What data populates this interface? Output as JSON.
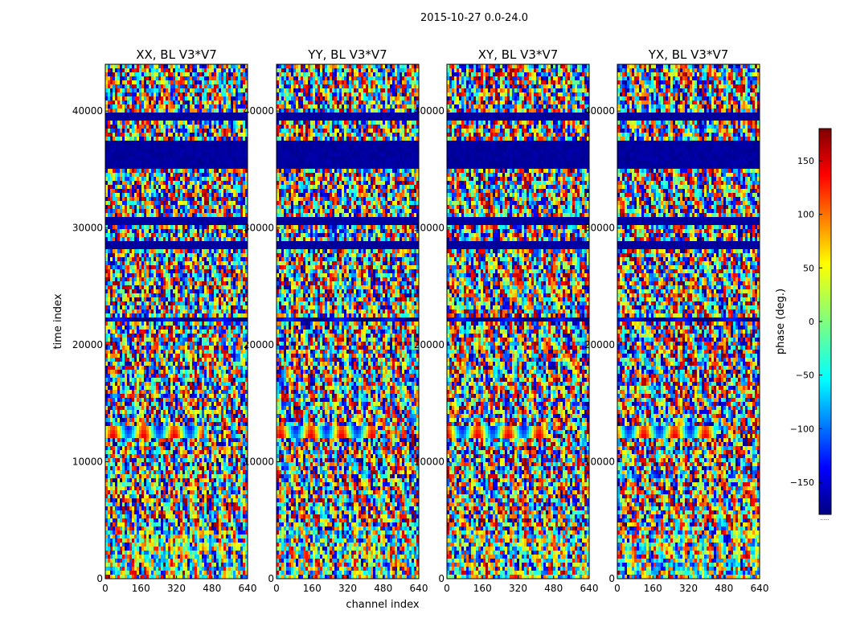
{
  "figure": {
    "suptitle": "2015-10-27 0.0-24.0",
    "xlabel": "channel index",
    "ylabel": "time index",
    "colorbar_label": "phase (deg.)",
    "colorbar_footer": "......"
  },
  "chart_data": {
    "type": "heatmap",
    "title": "2015-10-27 0.0-24.0",
    "xlabel": "channel index",
    "ylabel": "time index",
    "xlim": [
      0,
      640
    ],
    "ylim": [
      0,
      44000
    ],
    "x_ticks": [
      0,
      160,
      320,
      480,
      640
    ],
    "y_ticks": [
      0,
      10000,
      20000,
      30000,
      40000
    ],
    "x_tick_labels": [
      "0",
      "160",
      "320",
      "480",
      "640"
    ],
    "y_tick_labels": [
      "0",
      "10000",
      "20000",
      "30000",
      "40000"
    ],
    "colorbar": {
      "label": "phase (deg.)",
      "min": -180,
      "max": 180,
      "ticks": [
        -150,
        -100,
        -50,
        0,
        50,
        100,
        150
      ],
      "tick_labels": [
        "−150",
        "−100",
        "−50",
        "0",
        "50",
        "100",
        "150"
      ],
      "colormap": "jet"
    },
    "series": [
      {
        "name": "XX, BL V3*V7",
        "type": "heatmap",
        "x_range": [
          0,
          640
        ],
        "y_range": [
          0,
          44000
        ],
        "notes": "phase-vs-time/channel pattern with repeated horizontal banding; strong low-phase band near 35000–37500"
      },
      {
        "name": "YY, BL V3*V7",
        "type": "heatmap",
        "x_range": [
          0,
          640
        ],
        "y_range": [
          0,
          44000
        ],
        "notes": "phase-vs-time/channel pattern with repeated horizontal banding; strong low-phase band near 35000–37500"
      },
      {
        "name": "XY, BL V3*V7",
        "type": "heatmap",
        "x_range": [
          0,
          640
        ],
        "y_range": [
          0,
          44000
        ],
        "notes": "phase-vs-time/channel pattern with repeated horizontal banding; strong low-phase band near 35000–37500"
      },
      {
        "name": "YX, BL V3*V7",
        "type": "heatmap",
        "x_range": [
          0,
          640
        ],
        "y_range": [
          0,
          44000
        ],
        "notes": "phase-vs-time/channel pattern with repeated horizontal banding; strong low-phase band near 35000–37500"
      }
    ]
  },
  "colors": {
    "axis": "#000000",
    "background": "#ffffff",
    "jet_low": "#00007f",
    "jet_blue": "#0000ff",
    "jet_cyan": "#00ffff",
    "jet_green": "#7fff7f",
    "jet_yellow": "#ffff00",
    "jet_red": "#ff0000",
    "jet_high": "#7f0000"
  }
}
